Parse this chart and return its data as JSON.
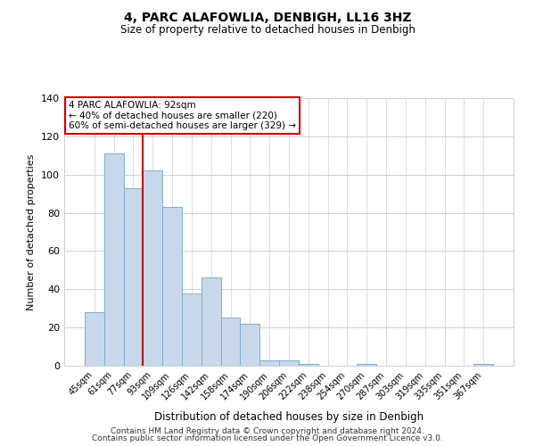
{
  "title": "4, PARC ALAFOWLIA, DENBIGH, LL16 3HZ",
  "subtitle": "Size of property relative to detached houses in Denbigh",
  "xlabel": "Distribution of detached houses by size in Denbigh",
  "ylabel": "Number of detached properties",
  "bin_labels": [
    "45sqm",
    "61sqm",
    "77sqm",
    "93sqm",
    "109sqm",
    "126sqm",
    "142sqm",
    "158sqm",
    "174sqm",
    "190sqm",
    "206sqm",
    "222sqm",
    "238sqm",
    "254sqm",
    "270sqm",
    "287sqm",
    "303sqm",
    "319sqm",
    "335sqm",
    "351sqm",
    "367sqm"
  ],
  "bar_values": [
    28,
    111,
    93,
    102,
    83,
    38,
    46,
    25,
    22,
    3,
    3,
    1,
    0,
    0,
    1,
    0,
    0,
    0,
    0,
    0,
    1
  ],
  "bar_color": "#c8d8ea",
  "bar_edgecolor": "#7baed0",
  "vline_color": "#cc0000",
  "ylim": [
    0,
    140
  ],
  "yticks": [
    0,
    20,
    40,
    60,
    80,
    100,
    120,
    140
  ],
  "annotation_title": "4 PARC ALAFOWLIA: 92sqm",
  "annotation_line1": "← 40% of detached houses are smaller (220)",
  "annotation_line2": "60% of semi-detached houses are larger (329) →",
  "annotation_box_color": "#ffffff",
  "annotation_box_edgecolor": "#cc0000",
  "footer1": "Contains HM Land Registry data © Crown copyright and database right 2024.",
  "footer2": "Contains public sector information licensed under the Open Government Licence v3.0.",
  "background_color": "#ffffff",
  "grid_color": "#c8d0d8"
}
